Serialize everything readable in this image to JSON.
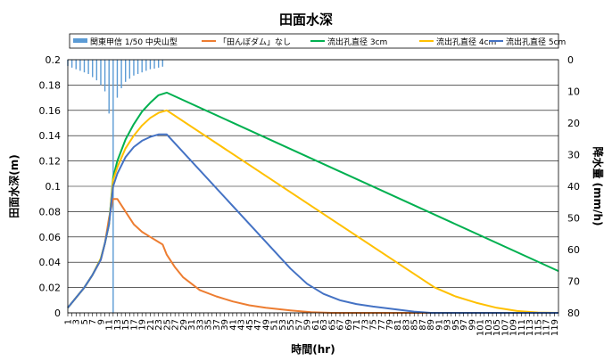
{
  "chart_data": {
    "type": "line",
    "title": "田面水深",
    "xlabel": "時間(hr)",
    "ylabel": "田面水深(m)",
    "y2label": "降水量 (mm/h)",
    "ylim": [
      0,
      0.2
    ],
    "y2lim": [
      80,
      0
    ],
    "y2_inverted": true,
    "xlim": [
      1,
      120
    ],
    "x_tick_labels": [
      "1",
      "3",
      "5",
      "7",
      "9",
      "11",
      "13",
      "15",
      "17",
      "19",
      "21",
      "23",
      "25",
      "27",
      "29",
      "31",
      "33",
      "35",
      "37",
      "39",
      "41",
      "43",
      "45",
      "47",
      "49",
      "51",
      "53",
      "55",
      "57",
      "59",
      "61",
      "63",
      "65",
      "67",
      "69",
      "71",
      "73",
      "75",
      "77",
      "79",
      "81",
      "83",
      "85",
      "87",
      "89",
      "91",
      "93",
      "95",
      "97",
      "99",
      "101",
      "103",
      "105",
      "107",
      "109",
      "111",
      "113",
      "115",
      "117",
      "119"
    ],
    "y_ticks": [
      "0",
      "0.02",
      "0.04",
      "0.06",
      "0.08",
      "0.1",
      "0.12",
      "0.14",
      "0.16",
      "0.18",
      "0.2"
    ],
    "y2_ticks": [
      "0",
      "10",
      "20",
      "30",
      "40",
      "50",
      "60",
      "70",
      "80"
    ],
    "grid": true,
    "legend_position": "top",
    "rainfall": {
      "name": "関東甲信 1/50 中央山型",
      "color": "#5B9BD5",
      "axis": "y2",
      "hours": [
        1,
        2,
        3,
        4,
        5,
        6,
        7,
        8,
        9,
        10,
        11,
        12,
        13,
        14,
        15,
        16,
        17,
        18,
        19,
        20,
        21,
        22,
        23,
        24
      ],
      "values": [
        2,
        2.5,
        3,
        3.5,
        4,
        4.5,
        5.5,
        6.5,
        8,
        10,
        17,
        80,
        12,
        9,
        7,
        6,
        5,
        4.5,
        4,
        3.5,
        3,
        2.8,
        2.5,
        2.2
      ]
    },
    "series": [
      {
        "name": "「田んぼダム」なし",
        "color": "#ED7D31",
        "points": [
          [
            1,
            0.004
          ],
          [
            3,
            0.012
          ],
          [
            5,
            0.02
          ],
          [
            7,
            0.03
          ],
          [
            9,
            0.042
          ],
          [
            10,
            0.055
          ],
          [
            11,
            0.075
          ],
          [
            12,
            0.09
          ],
          [
            13,
            0.09
          ],
          [
            15,
            0.08
          ],
          [
            17,
            0.07
          ],
          [
            19,
            0.064
          ],
          [
            21,
            0.06
          ],
          [
            23,
            0.056
          ],
          [
            24,
            0.054
          ],
          [
            25,
            0.046
          ],
          [
            27,
            0.036
          ],
          [
            29,
            0.028
          ],
          [
            31,
            0.023
          ],
          [
            33,
            0.018
          ],
          [
            37,
            0.013
          ],
          [
            41,
            0.009
          ],
          [
            45,
            0.006
          ],
          [
            49,
            0.004
          ],
          [
            55,
            0.002
          ],
          [
            60,
            0.0005
          ],
          [
            65,
            0
          ],
          [
            120,
            0
          ]
        ]
      },
      {
        "name": "流出孔直径 3cm",
        "color": "#00B050",
        "points": [
          [
            1,
            0.004
          ],
          [
            3,
            0.012
          ],
          [
            5,
            0.02
          ],
          [
            7,
            0.03
          ],
          [
            9,
            0.043
          ],
          [
            10,
            0.055
          ],
          [
            11,
            0.07
          ],
          [
            12,
            0.107
          ],
          [
            13,
            0.12
          ],
          [
            15,
            0.137
          ],
          [
            17,
            0.149
          ],
          [
            19,
            0.159
          ],
          [
            21,
            0.166
          ],
          [
            23,
            0.172
          ],
          [
            25,
            0.174
          ],
          [
            120,
            0.033
          ]
        ]
      },
      {
        "name": "流出孔直径 4cm",
        "color": "#FFC000",
        "points": [
          [
            1,
            0.004
          ],
          [
            3,
            0.012
          ],
          [
            5,
            0.02
          ],
          [
            7,
            0.03
          ],
          [
            9,
            0.043
          ],
          [
            10,
            0.055
          ],
          [
            11,
            0.07
          ],
          [
            12,
            0.105
          ],
          [
            13,
            0.115
          ],
          [
            15,
            0.13
          ],
          [
            17,
            0.14
          ],
          [
            19,
            0.148
          ],
          [
            21,
            0.154
          ],
          [
            23,
            0.158
          ],
          [
            25,
            0.16
          ],
          [
            90,
            0.02
          ],
          [
            95,
            0.013
          ],
          [
            100,
            0.008
          ],
          [
            105,
            0.004
          ],
          [
            110,
            0.0015
          ],
          [
            115,
            0.0003
          ],
          [
            120,
            0
          ]
        ]
      },
      {
        "name": "流出孔直径 5cm",
        "color": "#4472C4",
        "points": [
          [
            1,
            0.004
          ],
          [
            3,
            0.012
          ],
          [
            5,
            0.02
          ],
          [
            7,
            0.03
          ],
          [
            9,
            0.042
          ],
          [
            10,
            0.055
          ],
          [
            11,
            0.07
          ],
          [
            12,
            0.1
          ],
          [
            13,
            0.11
          ],
          [
            15,
            0.123
          ],
          [
            17,
            0.131
          ],
          [
            19,
            0.136
          ],
          [
            21,
            0.139
          ],
          [
            23,
            0.141
          ],
          [
            25,
            0.141
          ],
          [
            55,
            0.035
          ],
          [
            59,
            0.023
          ],
          [
            63,
            0.015
          ],
          [
            67,
            0.01
          ],
          [
            71,
            0.007
          ],
          [
            75,
            0.005
          ],
          [
            80,
            0.003
          ],
          [
            85,
            0.001
          ],
          [
            89,
            0
          ],
          [
            120,
            0
          ]
        ]
      }
    ]
  }
}
